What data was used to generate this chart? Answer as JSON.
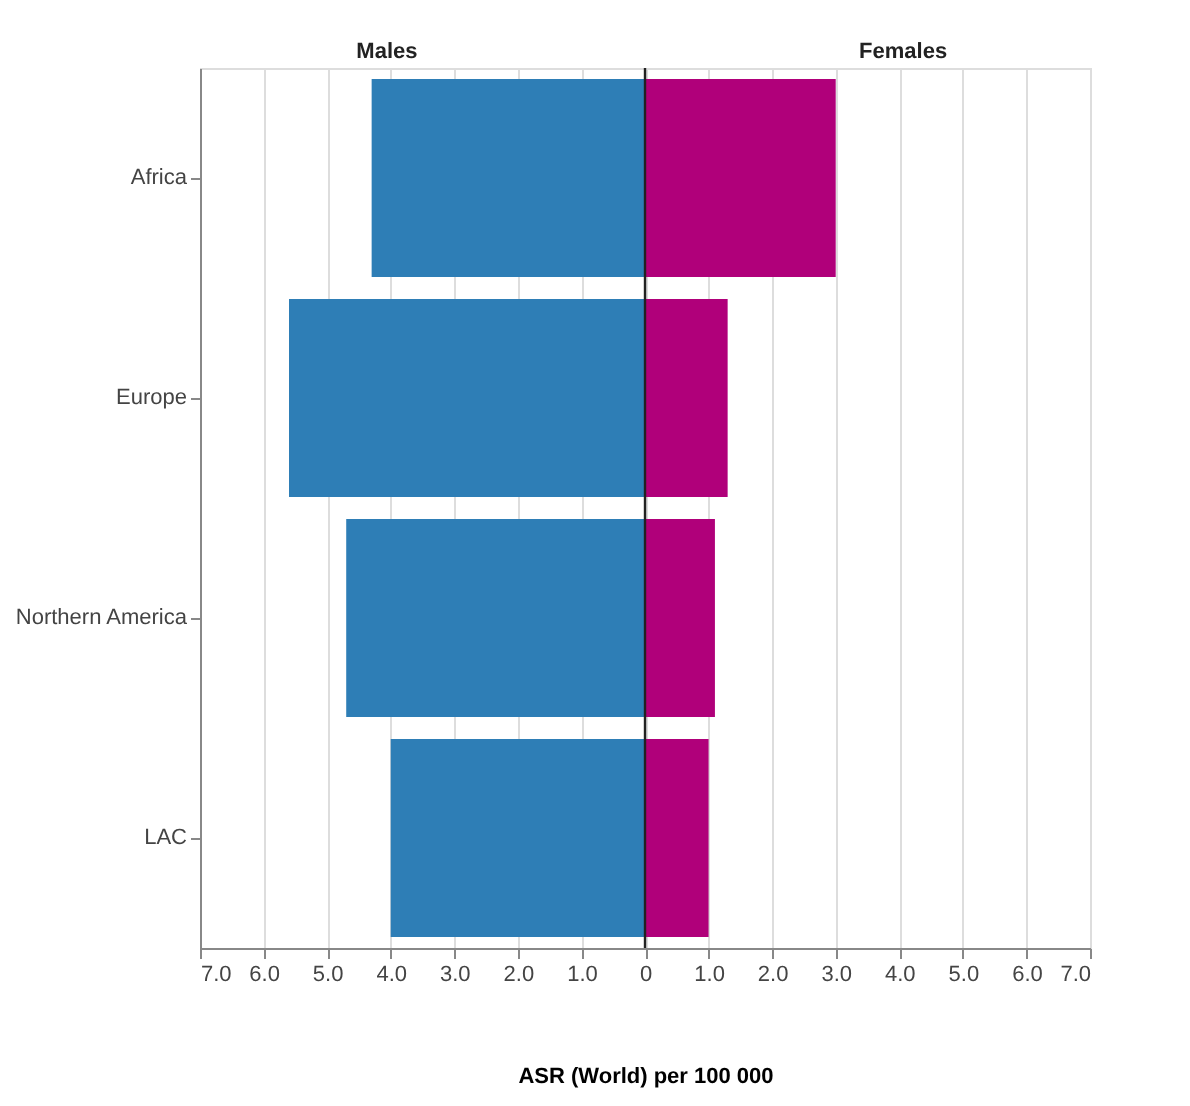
{
  "chart_data": {
    "type": "bar",
    "orientation": "horizontal",
    "stacked": true,
    "categories": [
      "Africa",
      "Europe",
      "Northern America",
      "LAC"
    ],
    "series": [
      {
        "name": "Males",
        "color": "#2e7eb6",
        "values": [
          -4.3,
          -5.6,
          -4.7,
          -4.0
        ]
      },
      {
        "name": "Females",
        "color": "#b0007a",
        "values": [
          3.0,
          1.3,
          1.1,
          1.0
        ]
      }
    ],
    "xlabel": "ASR (World) per 100 000",
    "xlim": [
      -7,
      7
    ],
    "xticks": [
      {
        "value": -7,
        "label": "7.0"
      },
      {
        "value": -6,
        "label": "6.0"
      },
      {
        "value": -5,
        "label": "5.0"
      },
      {
        "value": -4,
        "label": "4.0"
      },
      {
        "value": -3,
        "label": "3.0"
      },
      {
        "value": -2,
        "label": "2.0"
      },
      {
        "value": -1,
        "label": "1.0"
      },
      0,
      {
        "value": 1,
        "label": "1.0"
      },
      {
        "value": 2,
        "label": "2.0"
      },
      {
        "value": 3,
        "label": "3.0"
      },
      {
        "value": 4,
        "label": "4.0"
      },
      {
        "value": 5,
        "label": "5.0"
      },
      {
        "value": 6,
        "label": "6.0"
      },
      {
        "value": 7,
        "label": "7.0"
      }
    ],
    "grid": "x",
    "ref_lines": [
      {
        "axis": "x",
        "value": 0,
        "color": "#222222"
      }
    ]
  }
}
